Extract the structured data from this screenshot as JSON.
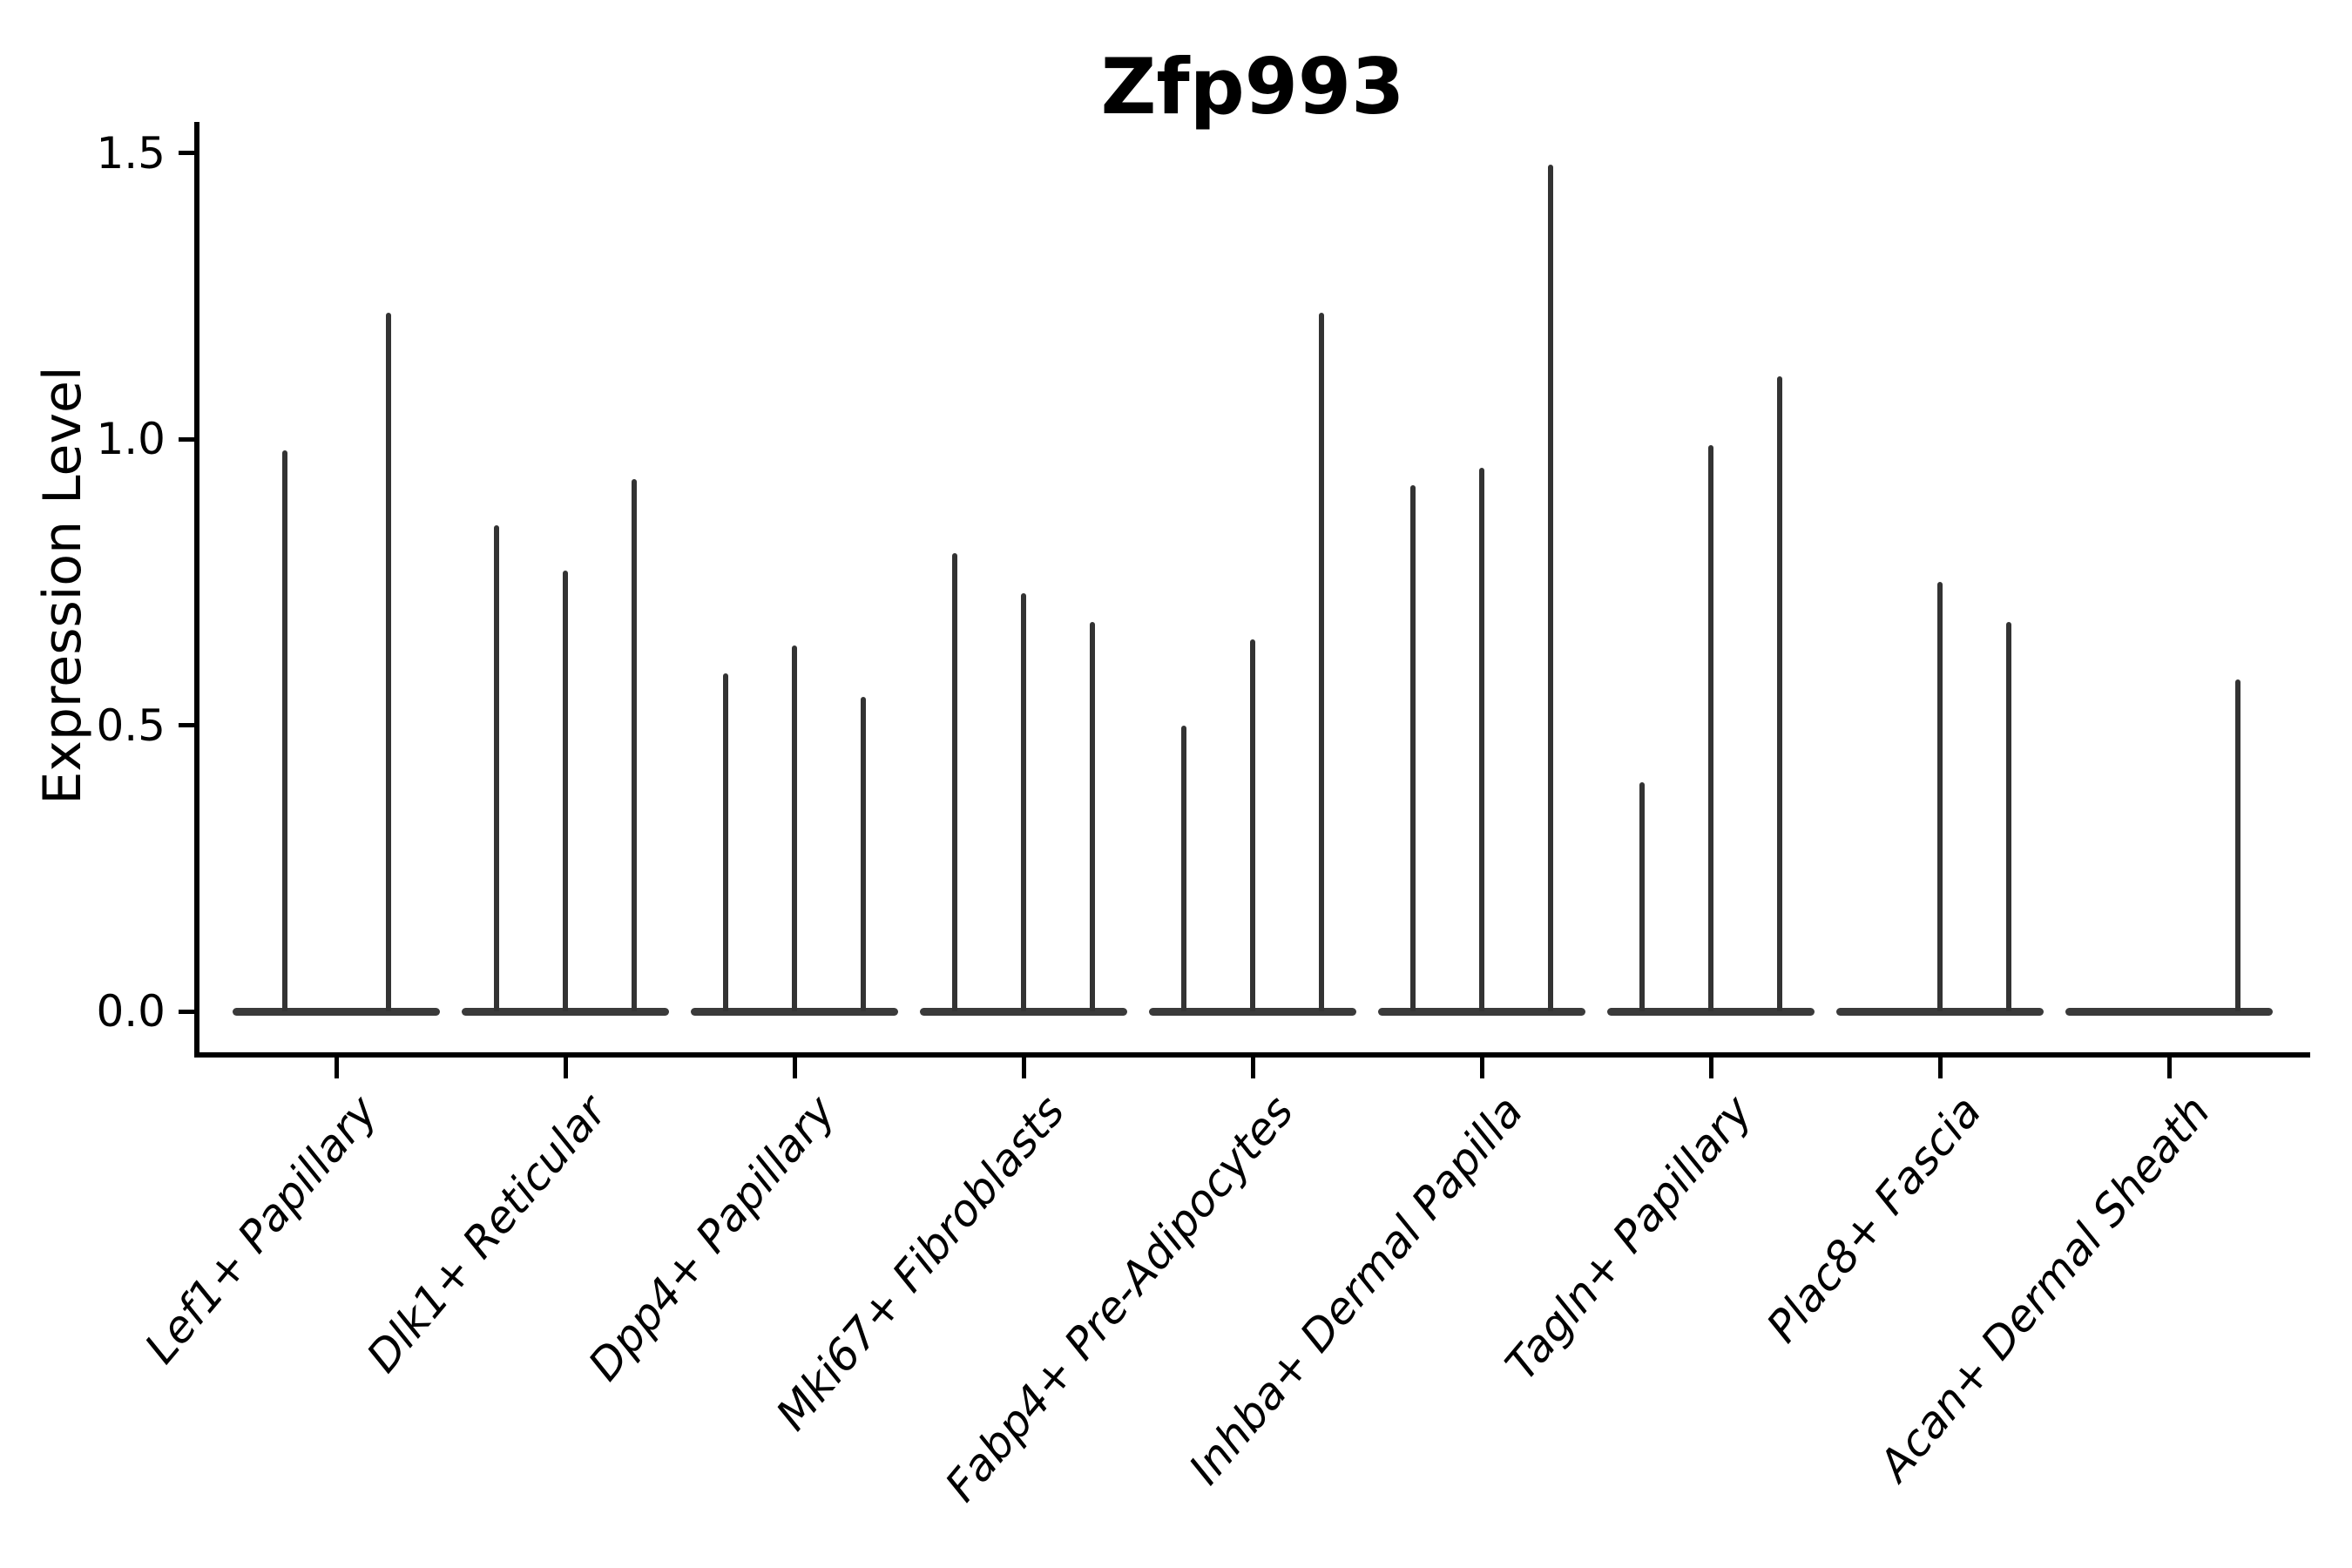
{
  "title": "Zfp993",
  "y_axis": {
    "label": "Expression Level",
    "tick_labels": [
      "0.0",
      "0.5",
      "1.0",
      "1.5"
    ]
  },
  "colors": {
    "violin": "#333333",
    "baseline": "#3a3a3a",
    "spine": "#000000",
    "text": "#000000",
    "background": "#ffffff"
  },
  "chart_data": {
    "type": "violin",
    "title": "Zfp993",
    "xlabel": "",
    "ylabel": "Expression Level",
    "ylim": [
      0,
      1.55
    ],
    "yticks": [
      0,
      0.5,
      1.0,
      1.5
    ],
    "ytick_labels": [
      "0.0",
      "0.5",
      "1.0",
      "1.5"
    ],
    "grid": false,
    "legend": null,
    "categories": [
      "Lef1+ Papillary",
      "Dlk1+ Reticular",
      "Dpp4+ Papillary",
      "Mki67+ Fibroblasts",
      "Fabp4+ Pre-Adipocytes",
      "Inhba+ Dermal Papilla",
      "Tagln+ Papillary",
      "Plac8+ Fascia",
      "Acan+ Dermal Sheath"
    ],
    "violin_peak_expression": [
      [
        0.98,
        1.22
      ],
      [
        0.85,
        0.77,
        0.93
      ],
      [
        0.59,
        0.64,
        0.55
      ],
      [
        0.8,
        0.73,
        0.68
      ],
      [
        0.5,
        0.65,
        1.22
      ],
      [
        0.92,
        0.95,
        1.48
      ],
      [
        0.4,
        0.99,
        1.11
      ],
      [
        0.0,
        0.75,
        0.68
      ],
      [
        0.0,
        0.0,
        0.58
      ]
    ],
    "notes": "Needle-thin violins with a flat base at expression 0; each category contains 2-3 violins; a peak of 0 renders as a flat violin (baseline only)."
  }
}
